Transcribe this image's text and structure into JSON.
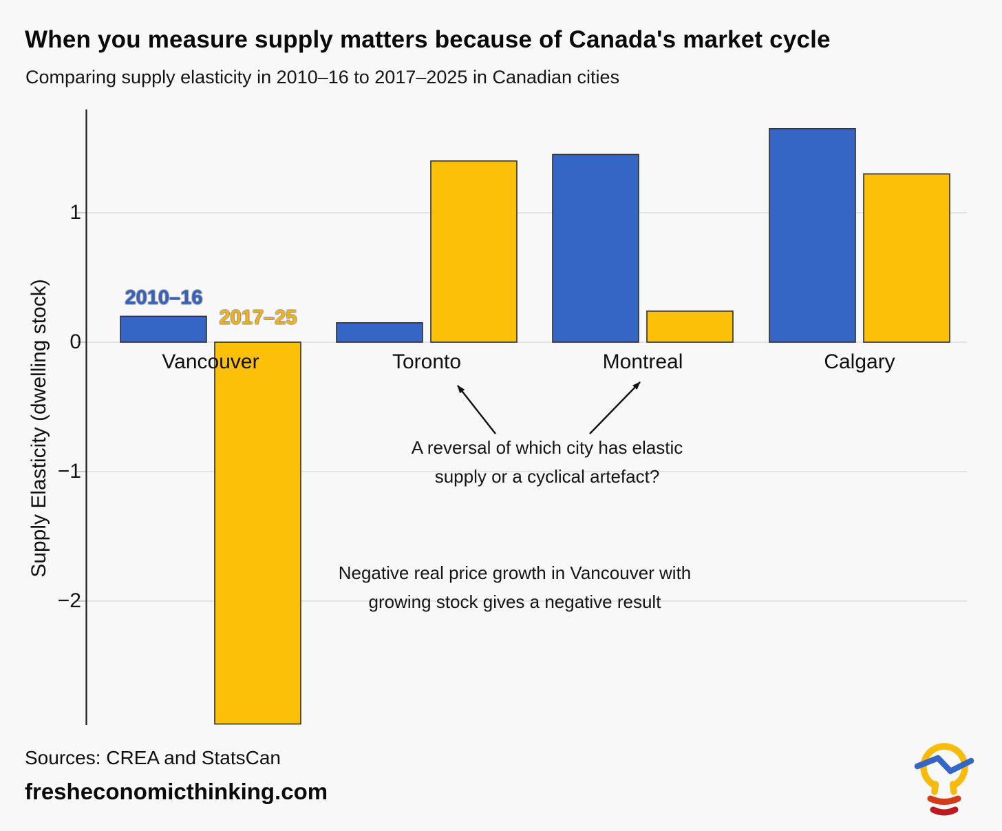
{
  "page": {
    "title": "When you measure supply matters because of Canada's market cycle",
    "subtitle": "Comparing supply elasticity in 2010–16 to 2017–2025 in Canadian cities",
    "background": "#f8f8f8"
  },
  "chart_data": {
    "type": "bar",
    "title": "When you measure supply matters because of Canada's market cycle",
    "subtitle": "Comparing supply elasticity in 2010–16 to 2017–2025 in Canadian cities",
    "categories": [
      "Vancouver",
      "Toronto",
      "Montreal",
      "Calgary"
    ],
    "series": [
      {
        "name": "2010–16",
        "color": "#3566C6",
        "label_color": "#3162C4",
        "values": [
          0.2,
          0.15,
          1.45,
          1.65
        ]
      },
      {
        "name": "2017–25",
        "color": "#FDC008",
        "label_color": "#F2B40D",
        "values": [
          -2.95,
          1.4,
          0.24,
          1.3
        ]
      }
    ],
    "xlabel": "",
    "ylabel": "Supply Elasticity (dwelling stock)",
    "yticks": [
      {
        "label": "1",
        "value": 1
      },
      {
        "label": "0",
        "value": 0
      },
      {
        "label": "−1",
        "value": -1
      },
      {
        "label": "−2",
        "value": -2
      }
    ],
    "ylim": [
      -2.95,
      1.79
    ],
    "grid": "horizontal-light",
    "bar_outline": "#2e2e33",
    "legend_position": "inline-labels-above-first-group",
    "annotations": [
      {
        "id": "reversal",
        "text": "A reversal of which city has elastic\nsupply or a cyclical artefact?",
        "targets": [
          "Toronto",
          "Montreal"
        ],
        "arrows": [
          {
            "target": "Toronto",
            "from": [
              720,
              630
            ],
            "to": [
              665,
              560
            ]
          },
          {
            "target": "Montreal",
            "from": [
              857,
              630
            ],
            "to": [
              930,
              555
            ]
          }
        ]
      },
      {
        "id": "vancouver-negative",
        "text": "Negative real price growth in Vancouver with\ngrowing stock gives a negative result",
        "targets": [
          "Vancouver"
        ],
        "arrows": []
      }
    ]
  },
  "footer": {
    "sources": "Sources: CREA and StatsCan",
    "website": "fresheconomicthinking.com"
  },
  "logo": {
    "name": "fresh-economic-thinking-lightbulb-logo",
    "bulb_color": "#F7BB0C",
    "line_color": "#3566C6",
    "base_colors": [
      "#D23A18",
      "#BD1A20"
    ]
  }
}
